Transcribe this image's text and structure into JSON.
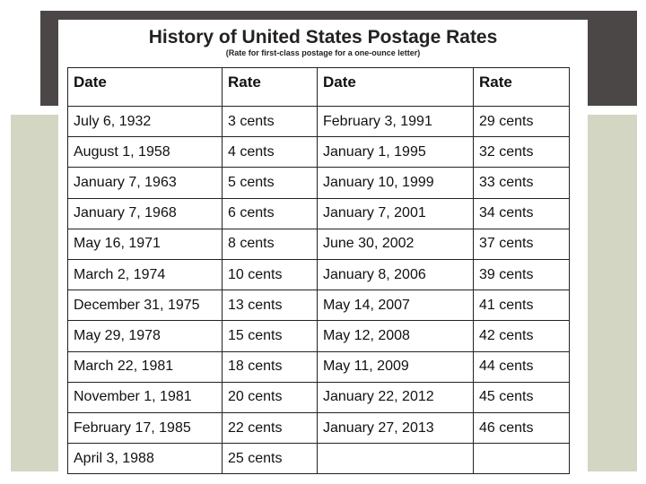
{
  "header": {
    "title": "History of United States Postage Rates",
    "subtitle": "(Rate for first-class postage for a one-ounce letter)"
  },
  "table": {
    "columns": [
      "Date",
      "Rate",
      "Date",
      "Rate"
    ],
    "rows": [
      [
        "July 6, 1932",
        "3 cents",
        "February 3, 1991",
        "29 cents"
      ],
      [
        "August 1, 1958",
        "4 cents",
        "January 1, 1995",
        "32 cents"
      ],
      [
        "January 7, 1963",
        "5 cents",
        "January 10, 1999",
        "33 cents"
      ],
      [
        "January 7, 1968",
        "6 cents",
        "January 7, 2001",
        "34 cents"
      ],
      [
        "May 16, 1971",
        "8 cents",
        "June 30, 2002",
        "37 cents"
      ],
      [
        "March 2, 1974",
        "10 cents",
        "January 8, 2006",
        "39 cents"
      ],
      [
        "December 31, 1975",
        "13 cents",
        "May 14, 2007",
        "41 cents"
      ],
      [
        "May 29, 1978",
        "15 cents",
        "May 12, 2008",
        "42 cents"
      ],
      [
        "March 22, 1981",
        "18 cents",
        "May 11, 2009",
        "44 cents"
      ],
      [
        "November 1, 1981",
        "20 cents",
        "January 22, 2012",
        "45 cents"
      ],
      [
        "February 17, 1985",
        "22 cents",
        "January 27, 2013",
        "46 cents"
      ],
      [
        "April 3, 1988",
        "25 cents"
      ]
    ]
  }
}
